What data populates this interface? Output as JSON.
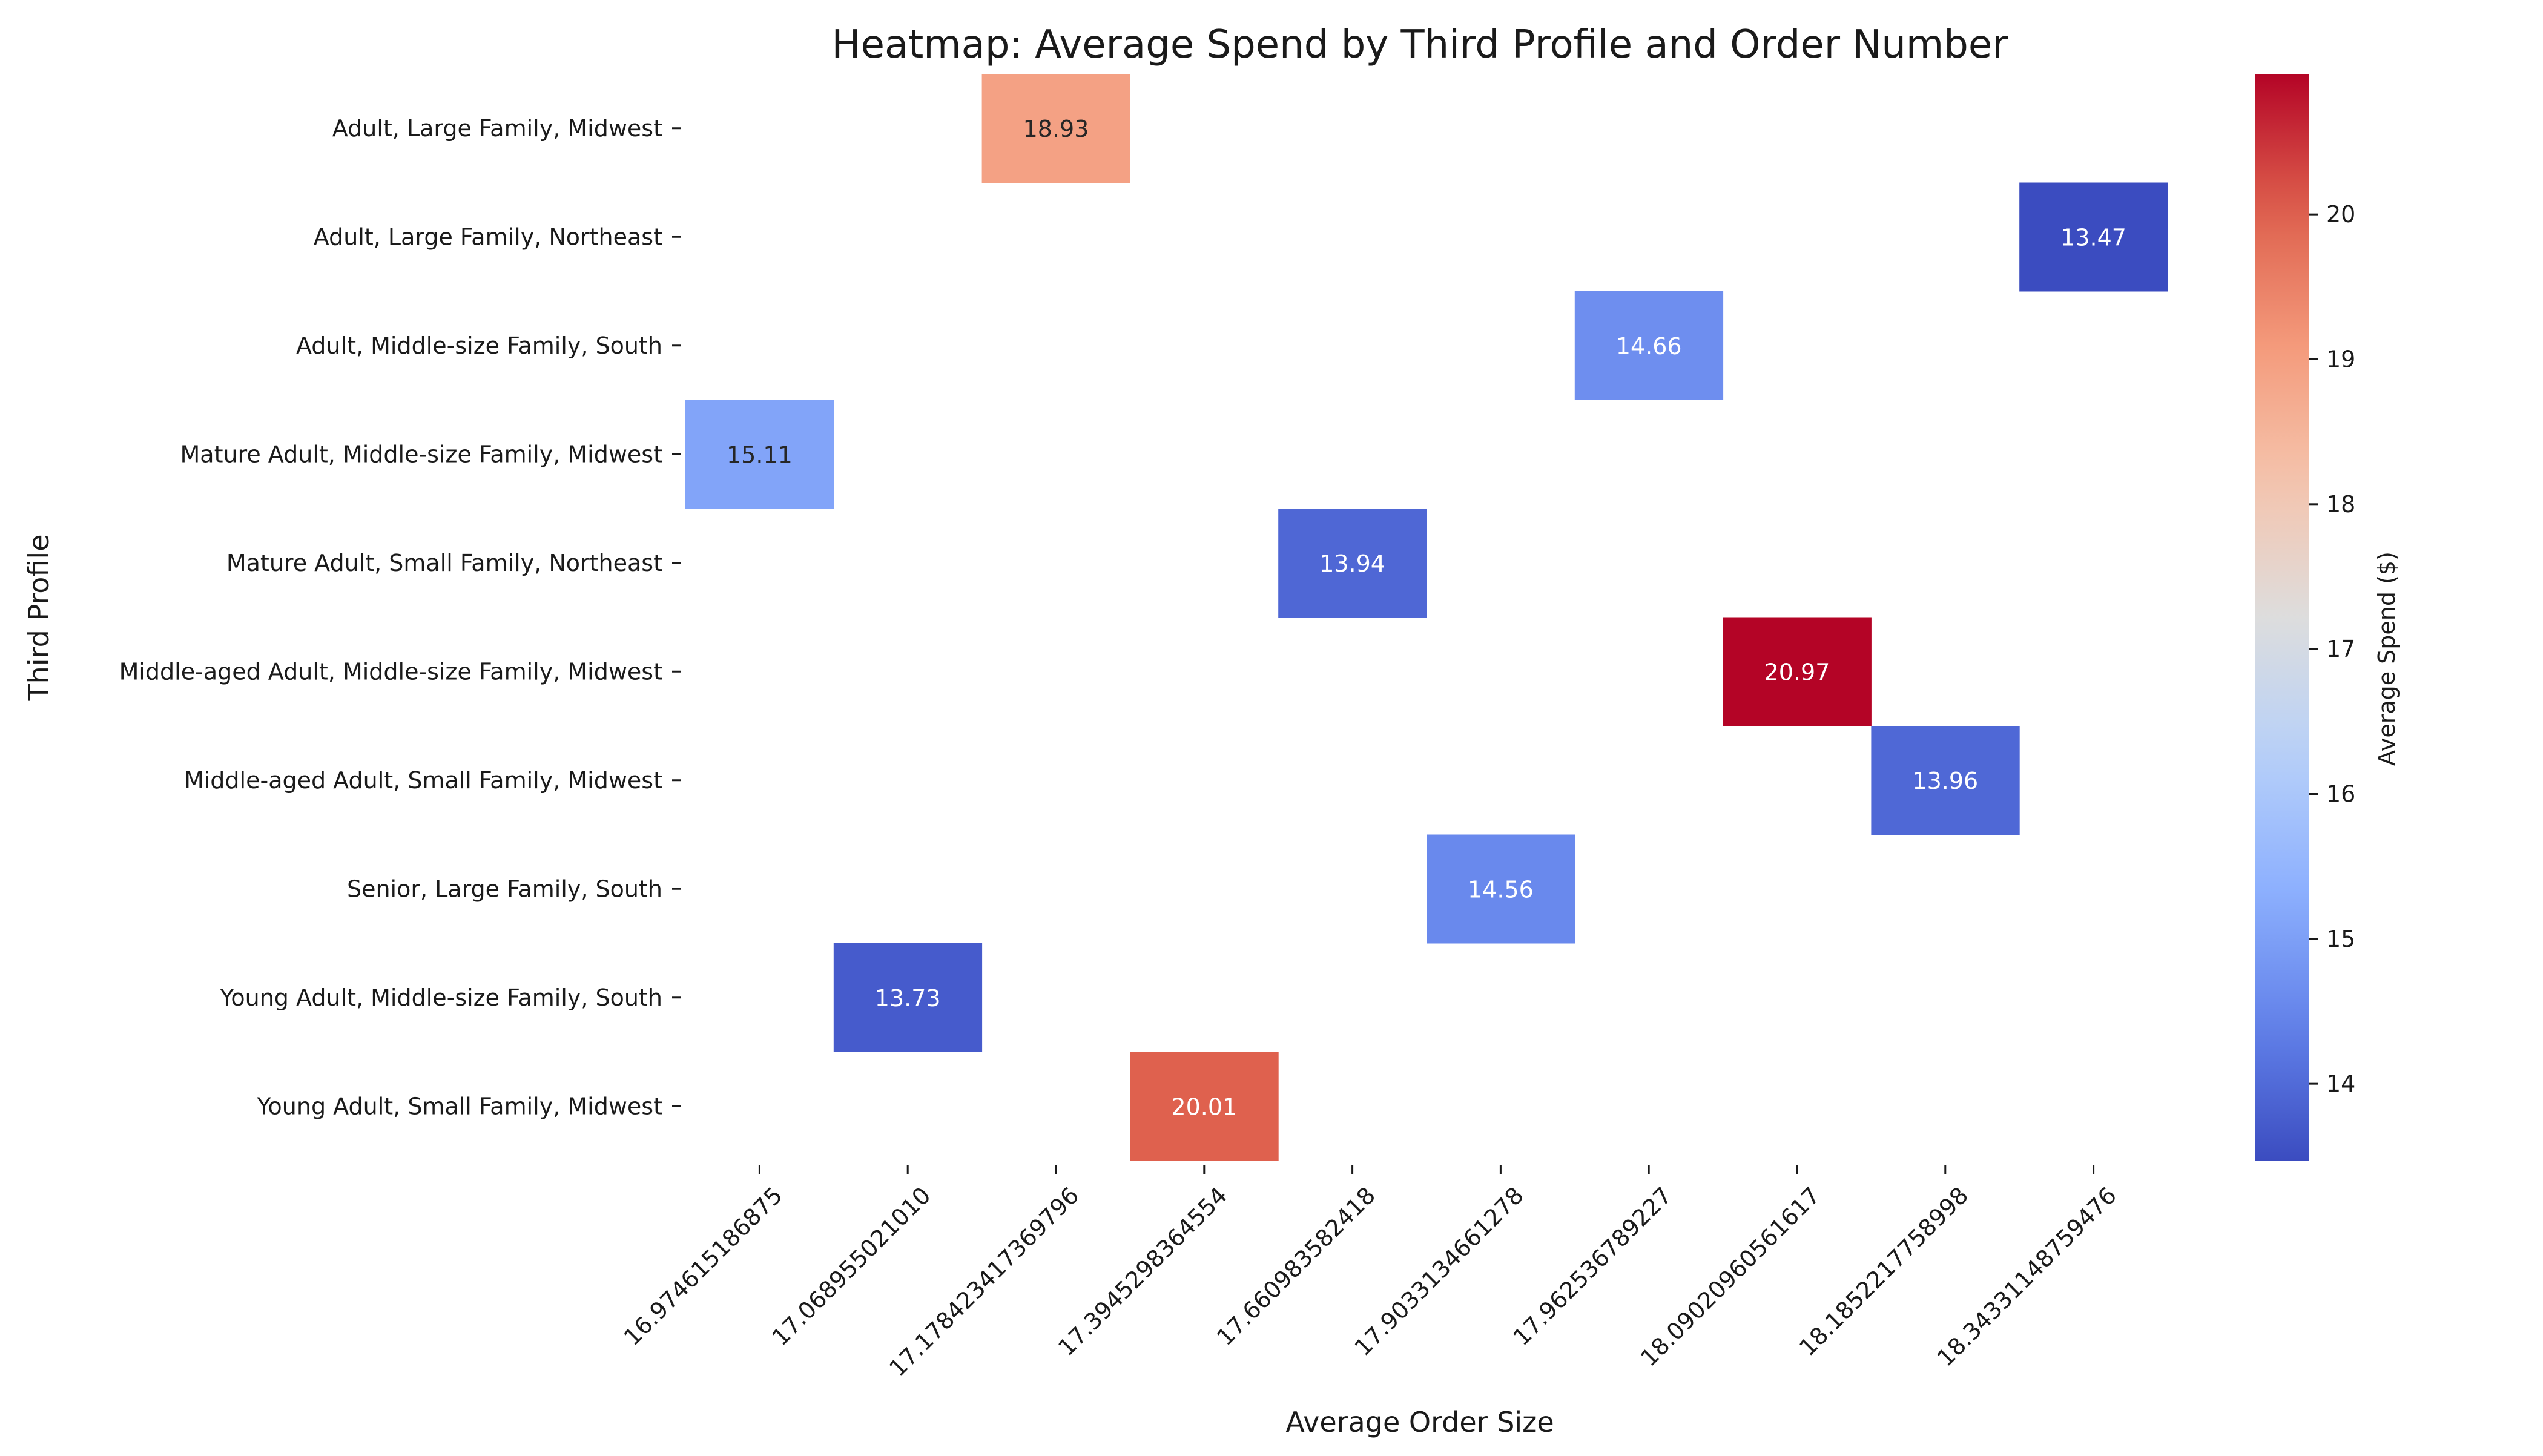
{
  "chart_data": {
    "type": "heatmap",
    "title": "Heatmap: Average Spend by Third Profile and Order Number",
    "xlabel": "Average Order Size",
    "ylabel": "Third Profile",
    "x_categories": [
      "16.974615186875",
      "17.068955021010",
      "17.178423417369796",
      "17.3945298364554",
      "17.660983582418",
      "17.9033134661278",
      "17.962536789227",
      "18.09020960561617",
      "18.1852217758998",
      "18.34331148759476"
    ],
    "y_categories": [
      "Adult, Large Family, Midwest",
      "Adult, Large Family, Northeast",
      "Adult, Middle-size Family, South",
      "Mature Adult, Middle-size Family, Midwest",
      "Mature Adult, Small Family, Northeast",
      "Middle-aged Adult, Middle-size Family, Midwest",
      "Middle-aged Adult, Small Family, Midwest",
      "Senior, Large Family, South",
      "Young Adult, Middle-size Family, South",
      "Young Adult, Small Family, Midwest"
    ],
    "cells": [
      {
        "row": 0,
        "col": 2,
        "value": 18.93,
        "label": "18.93"
      },
      {
        "row": 1,
        "col": 9,
        "value": 13.47,
        "label": "13.47"
      },
      {
        "row": 2,
        "col": 6,
        "value": 14.66,
        "label": "14.66"
      },
      {
        "row": 3,
        "col": 0,
        "value": 15.11,
        "label": "15.11"
      },
      {
        "row": 4,
        "col": 4,
        "value": 13.94,
        "label": "13.94"
      },
      {
        "row": 5,
        "col": 7,
        "value": 20.97,
        "label": "20.97"
      },
      {
        "row": 6,
        "col": 8,
        "value": 13.96,
        "label": "13.96"
      },
      {
        "row": 7,
        "col": 5,
        "value": 14.56,
        "label": "14.56"
      },
      {
        "row": 8,
        "col": 1,
        "value": 13.73,
        "label": "13.73"
      },
      {
        "row": 9,
        "col": 3,
        "value": 20.01,
        "label": "20.01"
      }
    ],
    "colorscale": "coolwarm",
    "vmin": 13.47,
    "vmax": 20.97,
    "colorbar": {
      "label": "Average Spend ($)",
      "ticks": [
        14,
        15,
        16,
        17,
        18,
        19,
        20
      ],
      "tick_labels": [
        "14",
        "15",
        "16",
        "17",
        "18",
        "19",
        "20"
      ]
    },
    "grid": false
  }
}
